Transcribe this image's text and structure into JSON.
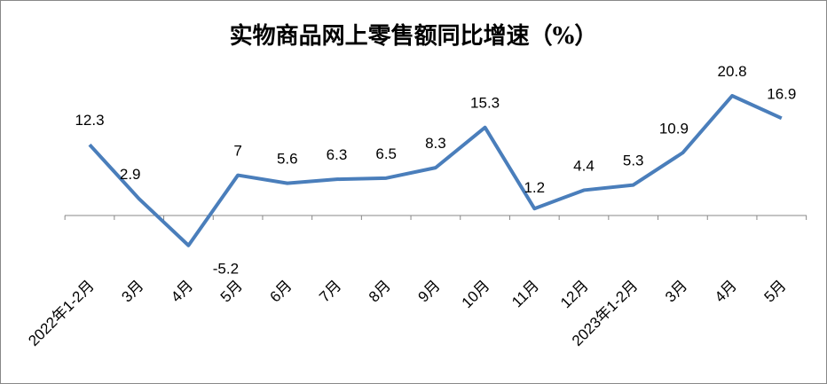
{
  "chart_data": {
    "type": "line",
    "title": "实物商品网上零售额同比增速（%）",
    "categories": [
      "2022年1-2月",
      "3月",
      "4月",
      "5月",
      "6月",
      "7月",
      "8月",
      "9月",
      "10月",
      "11月",
      "12月",
      "2023年1-2月",
      "3月",
      "4月",
      "5月"
    ],
    "values": [
      12.3,
      2.9,
      -5.2,
      7,
      5.6,
      6.3,
      6.5,
      8.3,
      15.3,
      1.2,
      4.4,
      5.3,
      10.9,
      20.8,
      16.9
    ],
    "labels": [
      "12.3",
      "2.9",
      "-5.2",
      "7",
      "5.6",
      "6.3",
      "6.5",
      "8.3",
      "15.3",
      "1.2",
      "4.4",
      "5.3",
      "10.9",
      "20.8",
      "16.9"
    ],
    "line_color": "#4a7ebb",
    "grid": false,
    "legend": "none"
  }
}
